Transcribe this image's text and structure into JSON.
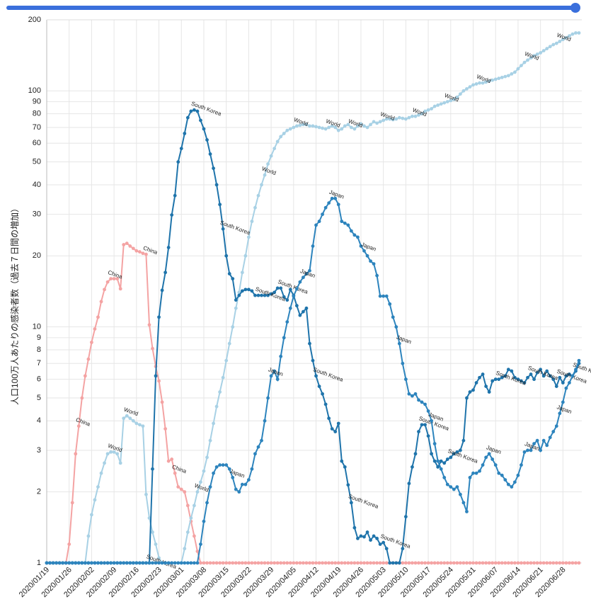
{
  "chart_data": {
    "type": "line",
    "y_label": "人口100万人あたりの感染者数（過去７日間の増加）",
    "yscale": "log",
    "grid": true,
    "ylim": [
      1,
      200
    ],
    "yticks": [
      1,
      2,
      3,
      4,
      5,
      6,
      7,
      8,
      9,
      10,
      20,
      30,
      40,
      50,
      60,
      70,
      80,
      90,
      100,
      200
    ],
    "categories": [
      "2020/01/19",
      null,
      null,
      null,
      null,
      null,
      null,
      "2020/01/26",
      null,
      null,
      null,
      null,
      null,
      null,
      "2020/02/02",
      null,
      null,
      null,
      null,
      null,
      null,
      "2020/02/09",
      null,
      null,
      null,
      null,
      null,
      null,
      "2020/02/16",
      null,
      null,
      null,
      null,
      null,
      null,
      "2020/02/23",
      null,
      null,
      null,
      null,
      null,
      null,
      "2020/03/01",
      null,
      null,
      null,
      null,
      null,
      null,
      "2020/03/08",
      null,
      null,
      null,
      null,
      null,
      null,
      "2020/03/15",
      null,
      null,
      null,
      null,
      null,
      null,
      "2020/03/22",
      null,
      null,
      null,
      null,
      null,
      null,
      "2020/03/29",
      null,
      null,
      null,
      null,
      null,
      null,
      "2020/04/05",
      null,
      null,
      null,
      null,
      null,
      null,
      "2020/04/12",
      null,
      null,
      null,
      null,
      null,
      null,
      "2020/04/19",
      null,
      null,
      null,
      null,
      null,
      null,
      "2020/04/26",
      null,
      null,
      null,
      null,
      null,
      null,
      "2020/05/03",
      null,
      null,
      null,
      null,
      null,
      null,
      "2020/05/10",
      null,
      null,
      null,
      null,
      null,
      null,
      "2020/05/17",
      null,
      null,
      null,
      null,
      null,
      null,
      "2020/05/24",
      null,
      null,
      null,
      null,
      null,
      null,
      "2020/05/31",
      null,
      null,
      null,
      null,
      null,
      null,
      "2020/06/07",
      null,
      null,
      null,
      null,
      null,
      null,
      "2020/06/14",
      null,
      null,
      null,
      null,
      null,
      null,
      "2020/06/21",
      null,
      null,
      null,
      null,
      null,
      null,
      "2020/06/28",
      null,
      null,
      null,
      null,
      null
    ],
    "series": [
      {
        "name": "China",
        "color": "#f4a3a3",
        "values": [
          1,
          1,
          1,
          1,
          1,
          1,
          1,
          1.2,
          1.8,
          2.9,
          3.8,
          5.0,
          6.2,
          7.3,
          8.6,
          9.8,
          11,
          12.8,
          14.4,
          15.5,
          16,
          16,
          16,
          14.5,
          22.3,
          22.6,
          22,
          21.5,
          21,
          20.8,
          20.5,
          20.3,
          10.2,
          8.1,
          6.8,
          5.9,
          4.8,
          3.7,
          2.7,
          2.75,
          2.4,
          2.1,
          2.05,
          2.0,
          1.75,
          1.5,
          1.3,
          1.12,
          1,
          1,
          1,
          1,
          1,
          1,
          1,
          1,
          1,
          1,
          1,
          1,
          1,
          1,
          1,
          1,
          1,
          1,
          1,
          1,
          1,
          1,
          1,
          1,
          1,
          1,
          1,
          1,
          1,
          1,
          1,
          1,
          1,
          1,
          1,
          1,
          1,
          1,
          1,
          1,
          1,
          1,
          1,
          1,
          1,
          1,
          1,
          1,
          1,
          1,
          1,
          1,
          1,
          1,
          1,
          1,
          1,
          1,
          1,
          1,
          1,
          1,
          1,
          1,
          1,
          1,
          1,
          1,
          1,
          1,
          1,
          1,
          1,
          1,
          1,
          1,
          1,
          1,
          1,
          1,
          1,
          1,
          1,
          1,
          1,
          1,
          1,
          1,
          1,
          1,
          1,
          1,
          1,
          1,
          1,
          1,
          1,
          1,
          1,
          1,
          1,
          1,
          1,
          1,
          1,
          1,
          1,
          1,
          1,
          1,
          1,
          1,
          1,
          1,
          1,
          1,
          1,
          1,
          1
        ]
      },
      {
        "name": "World",
        "color": "#a8d1e5",
        "values": [
          1,
          1,
          1,
          1,
          1,
          1,
          1,
          1,
          1,
          1,
          1,
          1,
          1,
          1.3,
          1.6,
          1.85,
          2.1,
          2.4,
          2.65,
          2.9,
          2.95,
          2.95,
          2.9,
          2.65,
          4.1,
          4.2,
          4.1,
          4.0,
          3.9,
          3.85,
          3.8,
          1.95,
          1.55,
          1.35,
          1.2,
          1.05,
          1,
          1,
          1,
          1,
          1,
          1,
          1,
          1.15,
          1.35,
          1.55,
          1.75,
          2.0,
          2.2,
          2.45,
          2.8,
          3.3,
          3.9,
          4.6,
          5.3,
          6.1,
          7.2,
          8.5,
          10,
          12,
          14,
          17,
          20,
          24,
          28,
          32,
          36,
          40,
          44,
          49,
          53,
          57,
          61,
          64,
          66,
          68,
          69,
          70,
          71,
          71.5,
          72,
          72,
          71,
          71,
          70.5,
          70,
          69.5,
          69,
          70,
          71,
          70,
          68,
          69,
          71,
          72,
          70,
          69,
          71,
          72.5,
          71,
          70,
          72,
          74,
          73,
          74,
          75,
          76,
          76,
          75.5,
          76,
          77,
          76.5,
          76,
          77,
          78,
          78,
          79,
          80,
          82,
          83,
          84,
          86,
          87,
          88,
          89,
          90,
          91,
          92,
          94,
          97,
          100,
          102,
          104,
          106,
          107,
          108,
          108,
          109,
          110,
          111,
          112,
          113,
          114,
          115,
          116,
          118,
          120,
          124,
          128,
          132,
          135,
          138,
          141,
          143,
          145,
          148,
          151,
          154,
          157,
          159,
          162,
          165,
          168,
          171,
          174,
          176,
          176
        ]
      },
      {
        "name": "South Korea",
        "color": "#1f74ab",
        "values": [
          1,
          1,
          1,
          1,
          1,
          1,
          1,
          1,
          1,
          1,
          1,
          1,
          1,
          1,
          1,
          1,
          1,
          1,
          1,
          1,
          1,
          1,
          1,
          1,
          1,
          1,
          1,
          1,
          1,
          1,
          1,
          1,
          1,
          2.5,
          6.2,
          11,
          14.3,
          17,
          21.7,
          29.8,
          36,
          50,
          57,
          66,
          77,
          82,
          83,
          82,
          75,
          69,
          62,
          54,
          47,
          40,
          33,
          26,
          20,
          16.8,
          16,
          13,
          13.6,
          14.2,
          14.4,
          14.4,
          14.2,
          13.6,
          13.6,
          13.6,
          13.6,
          13.6,
          13.8,
          14,
          14.6,
          14.6,
          13.4,
          13,
          14.4,
          13.6,
          12.3,
          11.2,
          11.6,
          12,
          8.5,
          7.2,
          6.2,
          5.6,
          5.2,
          4.7,
          4.1,
          3.7,
          3.6,
          3.9,
          2.7,
          2.55,
          2.14,
          1.8,
          1.41,
          1.27,
          1.3,
          1.29,
          1.35,
          1.25,
          1.3,
          1.27,
          1.2,
          1.22,
          1.15,
          1,
          1,
          1,
          1,
          1.15,
          1.57,
          2.17,
          2.55,
          2.9,
          3.6,
          3.85,
          3.85,
          3.45,
          2.9,
          2.7,
          2.55,
          2.7,
          2.65,
          2.75,
          2.8,
          2.9,
          2.95,
          3.0,
          3.3,
          5.0,
          5.3,
          5.4,
          5.8,
          6.1,
          6.3,
          5.6,
          5.3,
          5.9,
          6.0,
          6.0,
          6.1,
          6.2,
          6.6,
          6.5,
          6.1,
          6.0,
          5.9,
          5.8,
          6.1,
          6.3,
          6.0,
          6.4,
          6.6,
          6.2,
          6.5,
          6.2,
          6.0,
          5.6,
          6.1,
          5.8,
          6.2,
          6.3,
          6.2,
          6.5,
          7.0
        ]
      },
      {
        "name": "Japan",
        "color": "#2d84bd",
        "values": [
          1,
          1,
          1,
          1,
          1,
          1,
          1,
          1,
          1,
          1,
          1,
          1,
          1,
          1,
          1,
          1,
          1,
          1,
          1,
          1,
          1,
          1,
          1,
          1,
          1,
          1,
          1,
          1,
          1,
          1,
          1,
          1,
          1,
          1,
          1,
          1,
          1,
          1,
          1,
          1,
          1,
          1,
          1,
          1,
          1,
          1,
          1,
          1,
          1.2,
          1.5,
          1.8,
          2.1,
          2.4,
          2.55,
          2.6,
          2.6,
          2.6,
          2.5,
          2.3,
          2.05,
          2.0,
          2.15,
          2.15,
          2.25,
          2.5,
          2.9,
          3.1,
          3.3,
          4.0,
          5.0,
          6.2,
          6.5,
          6.0,
          7.5,
          9.0,
          10.5,
          12,
          13.5,
          14.5,
          15.5,
          16.2,
          16.8,
          17.3,
          22,
          27,
          28,
          30,
          32,
          33.5,
          35,
          35,
          33,
          28,
          27.5,
          27,
          25.5,
          24.5,
          24,
          22,
          21,
          20,
          19,
          18.5,
          16.5,
          13.5,
          13.5,
          13.5,
          12.5,
          11,
          10,
          8.5,
          7,
          6,
          5.2,
          5.1,
          5.2,
          4.9,
          4.8,
          4.7,
          4.4,
          4.0,
          3.2,
          2.7,
          2.5,
          2.3,
          2.15,
          2.1,
          2.05,
          2.1,
          1.95,
          1.8,
          1.65,
          2.3,
          2.4,
          2.4,
          2.45,
          2.6,
          2.8,
          2.9,
          2.75,
          2.6,
          2.4,
          2.35,
          2.25,
          2.15,
          2.1,
          2.2,
          2.35,
          2.6,
          2.95,
          3.0,
          3.0,
          3.2,
          3.3,
          3.0,
          3.3,
          3.15,
          3.4,
          3.6,
          3.8,
          4.3,
          4.8,
          5.5,
          5.8,
          6.2,
          6.6,
          7.2
        ]
      }
    ]
  }
}
